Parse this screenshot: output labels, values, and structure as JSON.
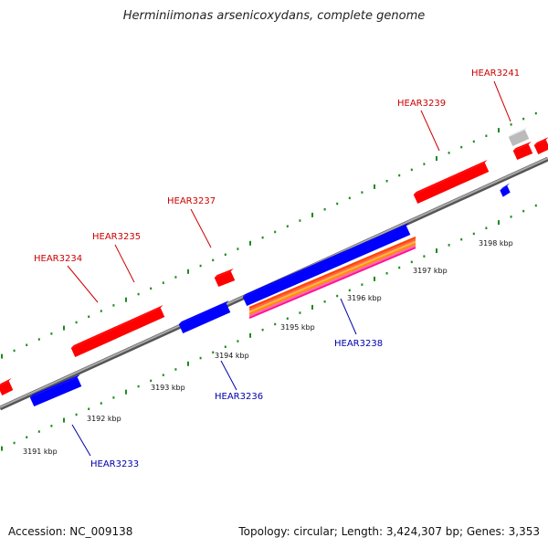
{
  "title": "Herminiimonas arsenicoxydans, complete genome",
  "footer": {
    "accession": "Accession: NC_009138",
    "topology": "Topology: circular; Length: 3,424,307 bp; Genes: 3,353"
  },
  "colors": {
    "forward": "#ff0000",
    "reverse": "#0000ff",
    "other": "#bbbbbb",
    "backbone": "#888888",
    "ticks": "#1a8c1a",
    "forward_label": "#cc0000",
    "reverse_label": "#0000aa"
  },
  "scale": {
    "labels": [
      {
        "text": "3191 kbp"
      },
      {
        "text": "3192 kbp"
      },
      {
        "text": "3193 kbp"
      },
      {
        "text": "3194 kbp"
      },
      {
        "text": "3195 kbp"
      },
      {
        "text": "3196 kbp"
      },
      {
        "text": "3197 kbp"
      },
      {
        "text": "3198 kbp"
      }
    ]
  },
  "genes": [
    {
      "name": "HEAR3233",
      "strand": "reverse"
    },
    {
      "name": "HEAR3234",
      "strand": "forward"
    },
    {
      "name": "HEAR3235",
      "strand": "forward"
    },
    {
      "name": "HEAR3236",
      "strand": "reverse"
    },
    {
      "name": "HEAR3237",
      "strand": "forward"
    },
    {
      "name": "HEAR3238",
      "strand": "reverse"
    },
    {
      "name": "HEAR3239",
      "strand": "forward"
    },
    {
      "name": "HEAR3241",
      "strand": "forward"
    }
  ]
}
